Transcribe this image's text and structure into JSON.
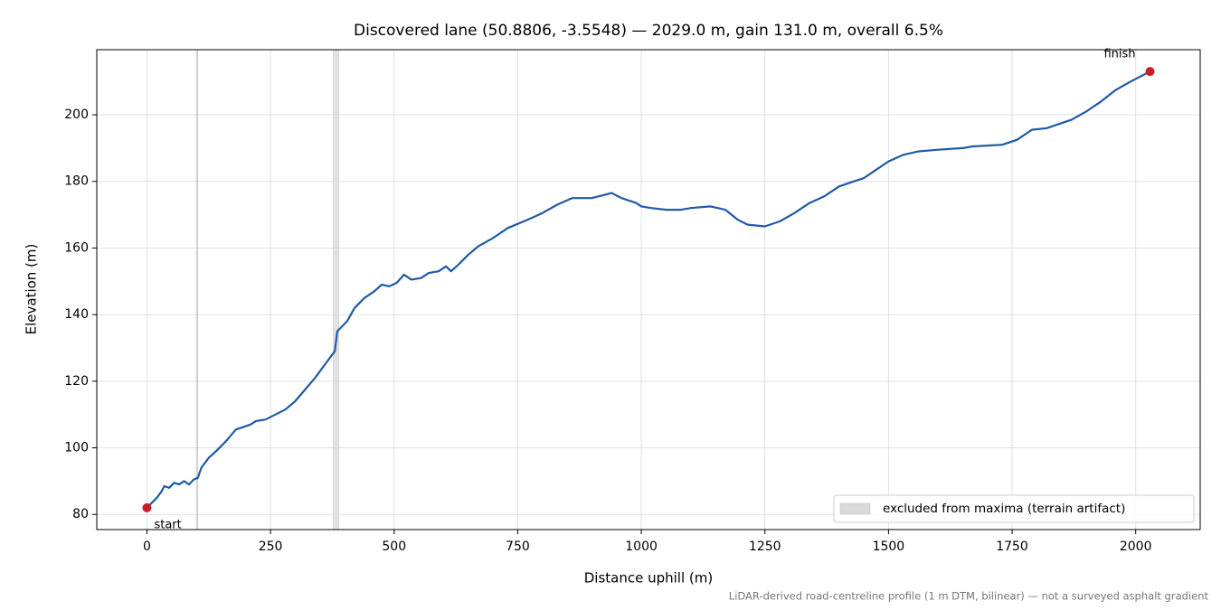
{
  "chart_data": {
    "type": "line",
    "title": "Discovered lane (50.8806, -3.5548) — 2029.0 m, gain 131.0 m, overall 6.5%",
    "x_label": "Distance uphill (m)",
    "y_label": "Elevation (m)",
    "footnote": "LiDAR-derived road-centreline profile (1 m DTM, bilinear) — not a surveyed asphalt gradient",
    "color": "#1f5aa6",
    "x": [
      0,
      10,
      20,
      30,
      35,
      45,
      55,
      65,
      75,
      85,
      95,
      103,
      110,
      125,
      140,
      160,
      180,
      190,
      200,
      210,
      220,
      240,
      260,
      280,
      300,
      320,
      340,
      360,
      370,
      380,
      385,
      395,
      405,
      420,
      440,
      460,
      475,
      490,
      505,
      520,
      535,
      555,
      570,
      590,
      605,
      615,
      630,
      650,
      670,
      700,
      730,
      770,
      800,
      830,
      860,
      900,
      940,
      960,
      990,
      1000,
      1020,
      1050,
      1080,
      1100,
      1140,
      1170,
      1195,
      1215,
      1250,
      1280,
      1310,
      1340,
      1370,
      1400,
      1430,
      1450,
      1470,
      1500,
      1530,
      1560,
      1600,
      1650,
      1670,
      1730,
      1760,
      1790,
      1820,
      1870,
      1900,
      1930,
      1960,
      1990,
      2029
    ],
    "values": [
      82,
      83.5,
      85,
      87,
      88.5,
      88,
      89.5,
      89,
      90,
      89,
      90.5,
      91,
      94,
      97,
      99,
      102,
      105.5,
      106,
      106.5,
      107,
      108,
      108.5,
      110,
      111.5,
      114,
      117.5,
      121,
      125,
      127,
      129,
      135,
      136.5,
      138,
      142,
      145,
      147,
      149,
      148.5,
      149.5,
      152,
      150.5,
      151,
      152.5,
      153,
      154.5,
      153,
      155,
      158,
      160.5,
      163,
      166,
      168.5,
      170.5,
      173,
      175,
      175,
      176.5,
      175,
      173.5,
      172.5,
      172,
      171.5,
      171.5,
      172,
      172.5,
      171.5,
      168.5,
      167,
      166.5,
      168,
      170.5,
      173.5,
      175.5,
      178.5,
      180,
      181,
      183,
      186,
      188,
      189,
      189.5,
      190,
      190.5,
      191,
      192.5,
      195.5,
      196,
      198.5,
      201,
      204,
      207.5,
      210,
      213
    ],
    "excluded": {
      "label": "excluded from maxima (terrain artifact)",
      "color": "#d9d9d9",
      "spans": [
        [
          100,
          103
        ],
        [
          377,
          388
        ]
      ]
    },
    "annotations": [
      {
        "text": "start",
        "x": 0,
        "y": 82
      },
      {
        "text": "finish",
        "x": 2029,
        "y": 213
      }
    ],
    "marker_color": "#c81e2a",
    "xlim": [
      -101.45,
      2130.45
    ],
    "ylim": [
      75.45,
      219.55
    ],
    "xticks": [
      0,
      250,
      500,
      750,
      1000,
      1250,
      1500,
      1750,
      2000
    ],
    "yticks": [
      80,
      100,
      120,
      140,
      160,
      180,
      200
    ],
    "grid": true,
    "legend": "lower right"
  }
}
